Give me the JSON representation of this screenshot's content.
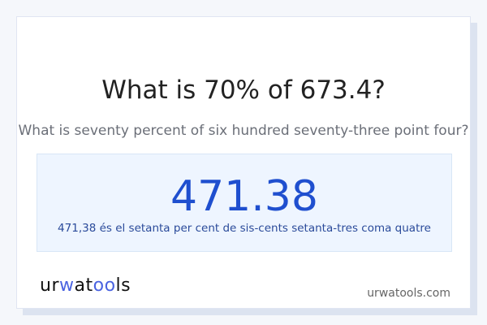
{
  "title": "What is 70% of 673.4?",
  "subtitle": "What is seventy percent of six hundred seventy-three point four?",
  "result": {
    "value": "471.38",
    "words": "471,38 és el setanta per cent de sis-cents setanta-tres coma quatre"
  },
  "footer": {
    "logo_text": "urwatools",
    "site": "urwatools.com"
  },
  "colors": {
    "accent": "#1f4fcf",
    "result_bg": "#eef5ff",
    "logo_accent": "#4a63e0"
  }
}
